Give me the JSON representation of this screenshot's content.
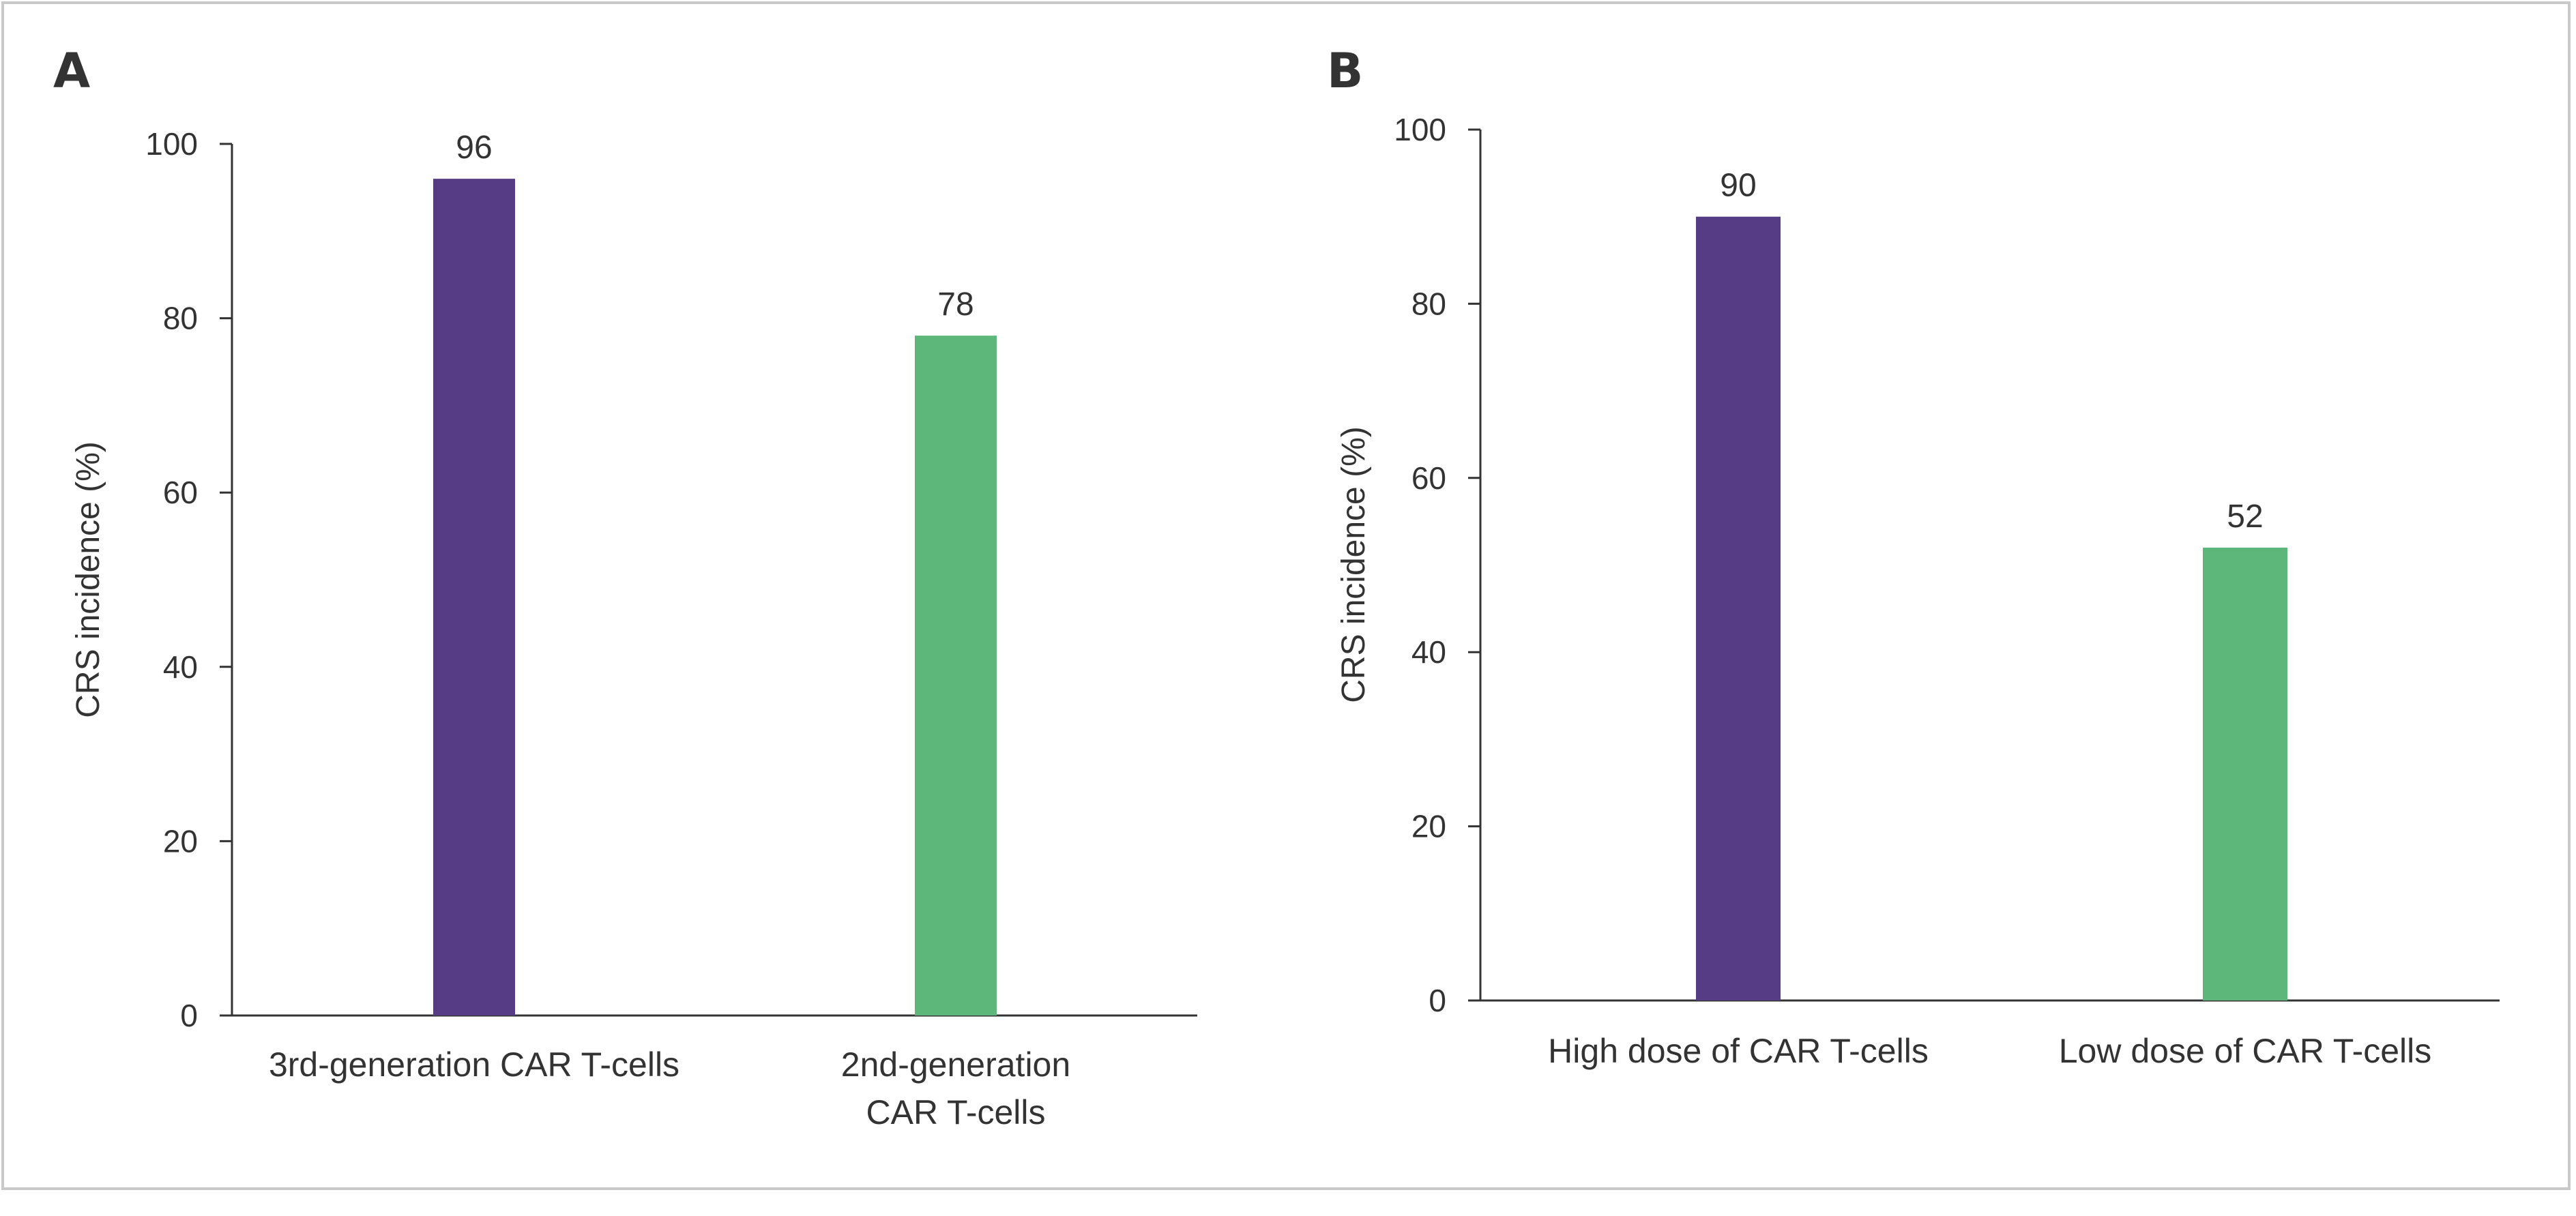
{
  "chart_data": [
    {
      "panel": "A",
      "type": "bar",
      "categories": [
        "3rd-generation CAR T-cells",
        "2nd-generation CAR T-cells"
      ],
      "category_lines": [
        [
          "3rd-generation CAR T-cells"
        ],
        [
          "2nd-generation",
          "CAR T-cells"
        ]
      ],
      "values": [
        96,
        78
      ],
      "value_labels": [
        "96",
        "78"
      ],
      "colors": [
        "#553c84",
        "#5db67a"
      ],
      "ylabel": "CRS incidence (%)",
      "ylim": [
        0,
        100
      ],
      "yticks": [
        0,
        20,
        40,
        60,
        80,
        100
      ],
      "grid": false
    },
    {
      "panel": "B",
      "type": "bar",
      "categories": [
        "High dose of CAR T-cells",
        "Low dose of CAR T-cells"
      ],
      "category_lines": [
        [
          "High dose of CAR T-cells"
        ],
        [
          "Low dose of CAR T-cells"
        ]
      ],
      "values": [
        90,
        52
      ],
      "value_labels": [
        "90",
        "52"
      ],
      "colors": [
        "#553c84",
        "#5db67a"
      ],
      "ylabel": "CRS incidence (%)",
      "ylim": [
        0,
        100
      ],
      "yticks": [
        0,
        20,
        40,
        60,
        80,
        100
      ],
      "grid": false
    }
  ]
}
